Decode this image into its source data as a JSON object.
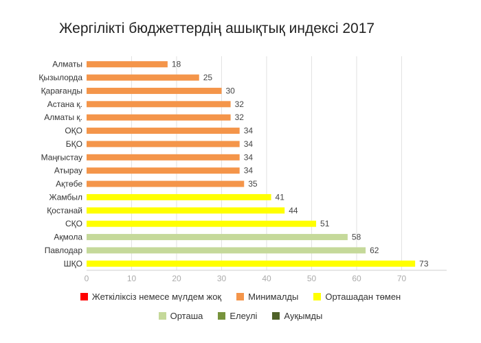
{
  "chart_data": {
    "type": "bar",
    "orientation": "horizontal",
    "title": "Жергілікті бюджеттердің ашықтық индексі 2017",
    "categories": [
      "Алматы",
      "Қызылорда",
      "Қарағанды",
      "Астана қ.",
      "Алматы қ.",
      "ОҚО",
      "БҚО",
      "Маңғыстау",
      "Атырау",
      "Ақтөбе",
      "Жамбыл",
      "Қостанай",
      "СҚО",
      "Ақмола",
      "Павлодар",
      "ШҚО"
    ],
    "values": [
      18,
      25,
      30,
      32,
      32,
      34,
      34,
      34,
      34,
      35,
      41,
      44,
      51,
      58,
      62,
      73
    ],
    "value_groups": [
      1,
      1,
      1,
      1,
      1,
      1,
      1,
      1,
      1,
      1,
      2,
      2,
      2,
      3,
      3,
      2
    ],
    "xlim": [
      0,
      80
    ],
    "xticks": [
      0,
      10,
      20,
      30,
      40,
      50,
      60,
      70
    ],
    "grid": true,
    "legend_position": "bottom",
    "legend": [
      {
        "label": "Жеткіліксіз немесе мүлдем жоқ",
        "color": "#ff0000"
      },
      {
        "label": "Минималды",
        "color": "#f4954a"
      },
      {
        "label": "Орташадан төмен",
        "color": "#ffff00"
      },
      {
        "label": "Орташа",
        "color": "#c5d99a"
      },
      {
        "label": "Елеулі",
        "color": "#77933c"
      },
      {
        "label": "Ауқымды",
        "color": "#4f6228"
      }
    ]
  }
}
